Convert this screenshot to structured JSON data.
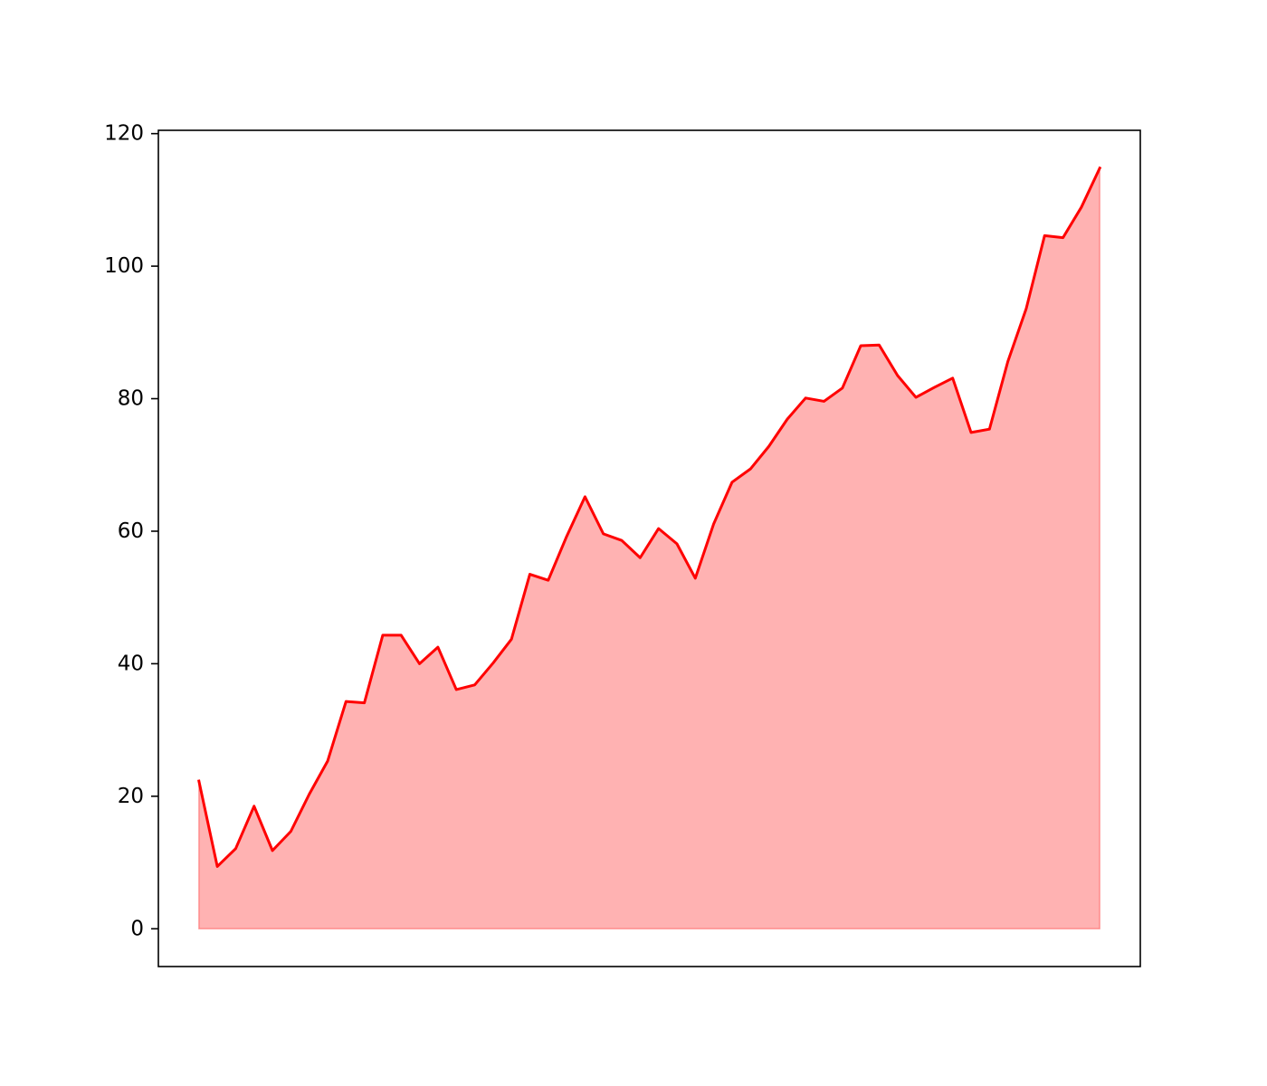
{
  "chart_data": {
    "type": "area",
    "title": "",
    "xlabel": "",
    "ylabel": "",
    "ylim": [
      -5.7,
      120.5
    ],
    "yticks": [
      0,
      20,
      40,
      60,
      80,
      100,
      120
    ],
    "ytick_labels": [
      "0",
      "20",
      "40",
      "60",
      "80",
      "100",
      "120"
    ],
    "xticks": [],
    "grid": false,
    "legend": "none",
    "line_color": "#ff0000",
    "fill_color": "#ff0000",
    "fill_opacity": 0.3,
    "x": [
      0,
      1,
      2,
      3,
      4,
      5,
      6,
      7,
      8,
      9,
      10,
      11,
      12,
      13,
      14,
      15,
      16,
      17,
      18,
      19,
      20,
      21,
      22,
      23,
      24,
      25,
      26,
      27,
      28,
      29,
      30,
      31,
      32,
      33,
      34,
      35,
      36,
      37,
      38,
      39,
      40,
      41,
      42,
      43,
      44,
      45,
      46,
      47,
      48,
      49
    ],
    "series": [
      {
        "values": [
          22.3,
          9.4,
          12.1,
          18.5,
          11.8,
          14.7,
          20.3,
          25.3,
          34.3,
          34.1,
          44.3,
          44.3,
          40.0,
          42.5,
          36.1,
          36.8,
          40.1,
          43.7,
          53.5,
          52.6,
          59.2,
          65.2,
          59.6,
          58.6,
          56.0,
          60.4,
          58.1,
          52.9,
          61.1,
          67.4,
          69.4,
          72.8,
          76.9,
          80.1,
          79.6,
          81.6,
          88.0,
          88.1,
          83.5,
          80.2,
          81.7,
          83.1,
          74.9,
          75.4,
          85.6,
          93.6,
          104.6,
          104.3,
          108.9,
          114.8
        ]
      }
    ]
  }
}
